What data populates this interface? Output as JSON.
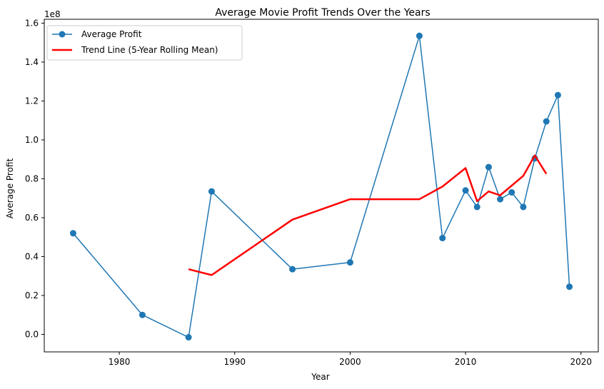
{
  "chart_data": {
    "type": "line",
    "title": "Average Movie Profit Trends Over the Years",
    "xlabel": "Year",
    "ylabel": "Average Profit",
    "y_offset_label": "1e8",
    "xlim": [
      1973.5,
      2021.5
    ],
    "ylim": [
      -0.09,
      1.62
    ],
    "x_ticks": [
      1980,
      1990,
      2000,
      2010,
      2020
    ],
    "y_ticks": [
      0.0,
      0.2,
      0.4,
      0.6,
      0.8,
      1.0,
      1.2,
      1.4,
      1.6
    ],
    "y_tick_labels": [
      "0.0",
      "0.2",
      "0.4",
      "0.6",
      "0.8",
      "1.0",
      "1.2",
      "1.4",
      "1.6"
    ],
    "grid": false,
    "legend_position": "upper-left",
    "series": [
      {
        "name": "Average Profit",
        "color": "#1f77b4",
        "marker": "circle",
        "x": [
          1976,
          1982,
          1986,
          1988,
          1995,
          2000,
          2006,
          2008,
          2010,
          2011,
          2012,
          2013,
          2014,
          2015,
          2016,
          2017,
          2018,
          2019
        ],
        "y": [
          0.52,
          0.1,
          -0.015,
          0.735,
          0.335,
          0.37,
          1.535,
          0.495,
          0.74,
          0.655,
          0.86,
          0.695,
          0.73,
          0.655,
          0.905,
          1.095,
          1.23,
          0.245
        ]
      },
      {
        "name": "Trend Line (5-Year Rolling Mean)",
        "color": "#ff0000",
        "marker": "none",
        "x": [
          1986,
          1988,
          1995,
          2000,
          2006,
          2008,
          2010,
          2011,
          2012,
          2013,
          2014,
          2015,
          2016,
          2017
        ],
        "y": [
          0.335,
          0.305,
          0.59,
          0.695,
          0.695,
          0.76,
          0.855,
          0.685,
          0.735,
          0.715,
          0.765,
          0.815,
          0.92,
          0.825
        ]
      }
    ]
  }
}
